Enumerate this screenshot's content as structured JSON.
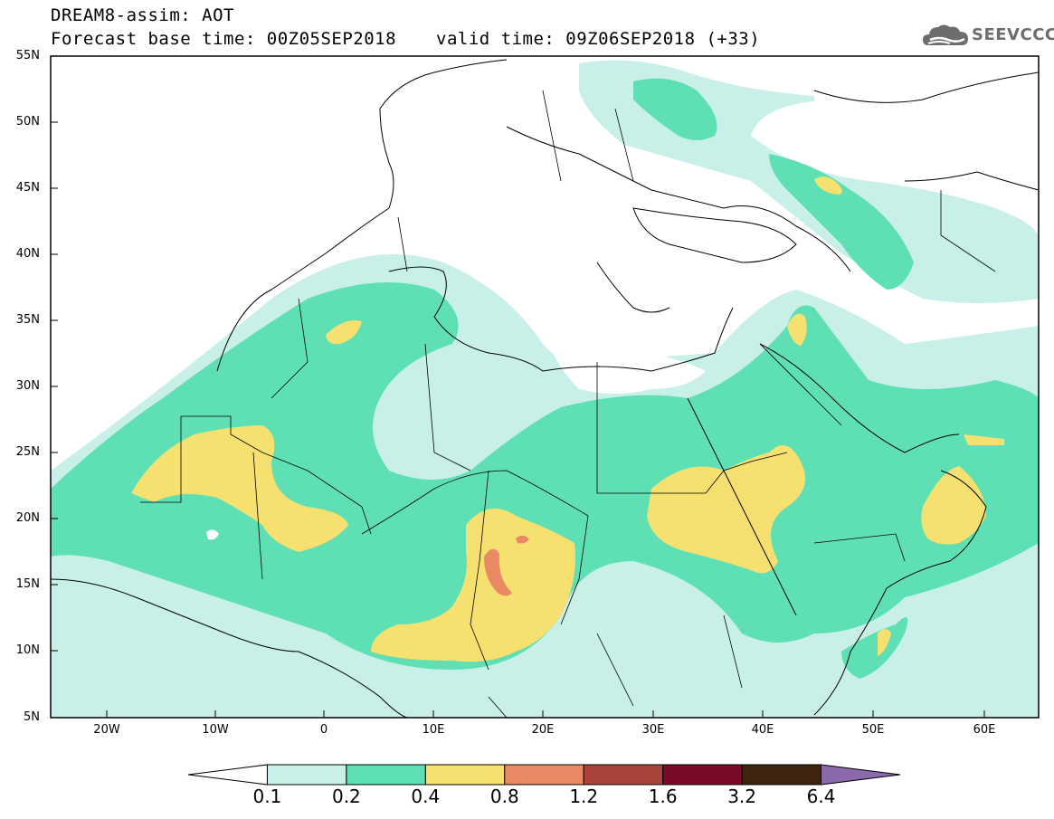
{
  "header": {
    "line1": "DREAM8-assim: AOT",
    "line2": "Forecast base time: 00Z05SEP2018",
    "valid": "valid time: 09Z06SEP2018 (+33)"
  },
  "logo": {
    "text": "SEEVCCC",
    "icon": "cloud-icon"
  },
  "map": {
    "lat_labels": [
      "55N",
      "50N",
      "45N",
      "40N",
      "35N",
      "30N",
      "25N",
      "20N",
      "15N",
      "10N",
      "5N"
    ],
    "lon_labels": [
      "20W",
      "10W",
      "0",
      "10E",
      "20E",
      "30E",
      "40E",
      "50E",
      "60E"
    ]
  },
  "colorbar": {
    "labels": [
      "0.1",
      "0.2",
      "0.4",
      "0.8",
      "1.2",
      "1.6",
      "3.2",
      "6.4"
    ],
    "colors": [
      "#ffffff",
      "#c8f0e8",
      "#5fe0b4",
      "#f5e070",
      "#e98a64",
      "#a8443a",
      "#7a0a28",
      "#3f2410",
      "#8a6aaa"
    ]
  }
}
